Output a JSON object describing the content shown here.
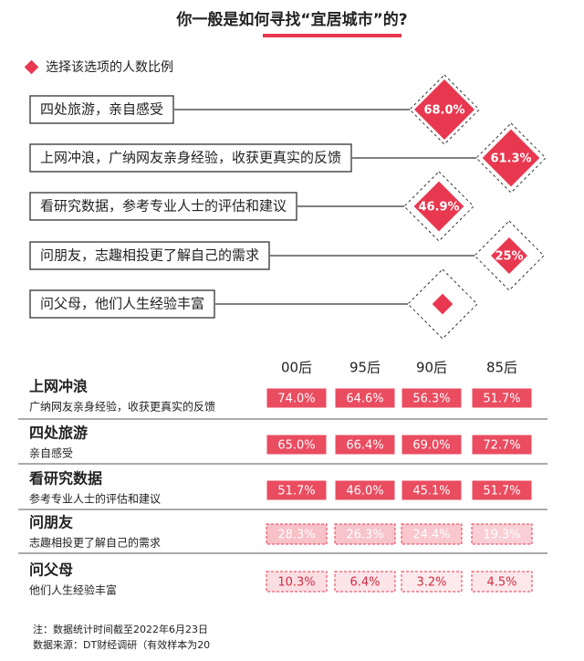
{
  "title": "你一般是如何寻找“宜居城市”的?",
  "legend": "选择该选项的人数比例",
  "diamond_chart": {
    "type": "diamond",
    "color": "#e8384f",
    "items": [
      {
        "label": "四处旅游，亲自感受",
        "value": 68.0,
        "value_label": "68.0%"
      },
      {
        "label": "上网冲浪，广纳网友亲身经验，收获更真实的反馈",
        "value": 61.3,
        "value_label": "61.3%"
      },
      {
        "label": "看研究数据，参考专业人士的评估和建议",
        "value": 46.9,
        "value_label": "46.9%"
      },
      {
        "label": "问朋友，志趣相投更了解自己的需求",
        "value": 25,
        "value_label": "25%"
      },
      {
        "label": "问父母，他们人生经验丰富",
        "value": 8,
        "value_label": null
      }
    ]
  },
  "table": {
    "columns": [
      "00后",
      "95后",
      "90后",
      "85后"
    ],
    "rows": [
      {
        "title": "上网冲浪",
        "subtitle": "广纳网友亲身经验，收获更真实的反馈",
        "values": [
          74.0,
          64.6,
          56.3,
          51.7
        ],
        "value_labels": [
          "74.0%",
          "64.6%",
          "56.3%",
          "51.7%"
        ]
      },
      {
        "title": "四处旅游",
        "subtitle": "亲自感受",
        "values": [
          65.0,
          66.4,
          69.0,
          72.7
        ],
        "value_labels": [
          "65.0%",
          "66.4%",
          "69.0%",
          "72.7%"
        ]
      },
      {
        "title": "看研究数据",
        "subtitle": "参考专业人士的评估和建议",
        "values": [
          51.7,
          46.0,
          45.1,
          51.7
        ],
        "value_labels": [
          "51.7%",
          "46.0%",
          "45.1%",
          "51.7%"
        ]
      },
      {
        "title": "问朋友",
        "subtitle": "志趣相投更了解自己的需求",
        "values": [
          28.3,
          26.3,
          24.4,
          19.3
        ],
        "value_labels": [
          "28.3%",
          "26.3%",
          "24.4%",
          "19.3%"
        ]
      },
      {
        "title": "问父母",
        "subtitle": "他们人生经验丰富",
        "values": [
          10.3,
          6.4,
          3.2,
          4.5
        ],
        "value_labels": [
          "10.3%",
          "6.4%",
          "3.2%",
          "4.5%"
        ]
      }
    ]
  },
  "notes": [
    "注：数据统计时间截至2022年6月23日",
    "数据来源：DT财经调研（有效样本为20"
  ]
}
